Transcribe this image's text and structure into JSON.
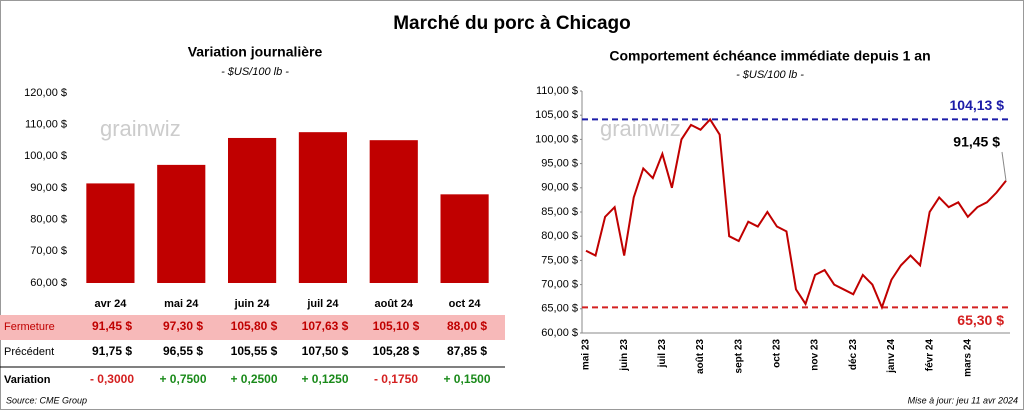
{
  "title": "Marché du porc à Chicago",
  "watermark": "grainwiz",
  "chart_data": [
    {
      "type": "bar",
      "title": "Variation journalière",
      "subtitle": "- $US/100 lb -",
      "categories": [
        "avr 24",
        "mai 24",
        "juin 24",
        "juil 24",
        "août 24",
        "oct 24"
      ],
      "values": [
        91.45,
        97.3,
        105.8,
        107.63,
        105.1,
        88.0
      ],
      "color": "#c00000",
      "ylim": [
        60,
        120
      ],
      "yticks": [
        {
          "value": 60,
          "label": "60,00 $"
        },
        {
          "value": 70,
          "label": "70,00 $"
        },
        {
          "value": 80,
          "label": "80,00 $"
        },
        {
          "value": 90,
          "label": "90,00 $"
        },
        {
          "value": 100,
          "label": "100,00 $"
        },
        {
          "value": 110,
          "label": "110,00 $"
        },
        {
          "value": 120,
          "label": "120,00 $"
        }
      ],
      "grid": false
    },
    {
      "type": "line",
      "title": "Comportement  échéance immédiate depuis 1 an",
      "subtitle": "- $US/100 lb -",
      "categories": [
        "mai 23",
        null,
        null,
        null,
        "juin 23",
        null,
        null,
        null,
        "juil 23",
        null,
        null,
        null,
        "août 23",
        null,
        null,
        null,
        "sept 23",
        null,
        null,
        null,
        "oct 23",
        null,
        null,
        null,
        "nov 23",
        null,
        null,
        null,
        "déc 23",
        null,
        null,
        null,
        "janv 24",
        null,
        null,
        null,
        "févr 24",
        null,
        null,
        null,
        "mars 24",
        null,
        null,
        null,
        null
      ],
      "series": [
        {
          "name": "Fermeture",
          "color": "#c00000",
          "values": [
            77,
            76,
            84,
            86,
            76,
            88,
            94,
            92,
            97,
            90,
            100,
            103,
            102,
            104.13,
            101,
            80,
            79,
            83,
            82,
            85,
            82,
            81,
            69,
            66,
            72,
            73,
            70,
            69,
            68,
            72,
            70,
            65.3,
            71,
            74,
            76,
            74,
            85,
            88,
            86,
            87,
            84,
            86,
            87,
            89,
            91.45
          ]
        }
      ],
      "ylim": [
        60,
        110
      ],
      "yticks": [
        {
          "value": 60,
          "label": "60,00 $"
        },
        {
          "value": 65,
          "label": "65,00 $"
        },
        {
          "value": 70,
          "label": "70,00 $"
        },
        {
          "value": 75,
          "label": "75,00 $"
        },
        {
          "value": 80,
          "label": "80,00 $"
        },
        {
          "value": 85,
          "label": "85,00 $"
        },
        {
          "value": 90,
          "label": "90,00 $"
        },
        {
          "value": 95,
          "label": "95,00 $"
        },
        {
          "value": 100,
          "label": "100,00 $"
        },
        {
          "value": 105,
          "label": "105,00 $"
        },
        {
          "value": 110,
          "label": "110,00 $"
        }
      ],
      "hlines": [
        {
          "value": 104.13,
          "label": "104,13 $",
          "color": "#1c1ca8"
        },
        {
          "value": 65.3,
          "label": "65,30 $",
          "color": "#d42020"
        }
      ],
      "last_label": "91,45 $"
    }
  ],
  "table": {
    "rows": [
      [
        "Fermeture",
        "91,45 $",
        "97,30 $",
        "105,80 $",
        "107,63 $",
        "105,10 $",
        "88,00 $"
      ],
      [
        "Précédent",
        "91,75 $",
        "96,55 $",
        "105,55 $",
        "107,50 $",
        "105,28 $",
        "87,85 $"
      ],
      [
        "Variation",
        "- 0,3000",
        "+ 0,7500",
        "+ 0,2500",
        "+ 0,1250",
        "- 0,1750",
        "+ 0,1500"
      ]
    ]
  },
  "source": "Source: CME Group",
  "updated": "Mise à jour: jeu 11 avr 2024"
}
